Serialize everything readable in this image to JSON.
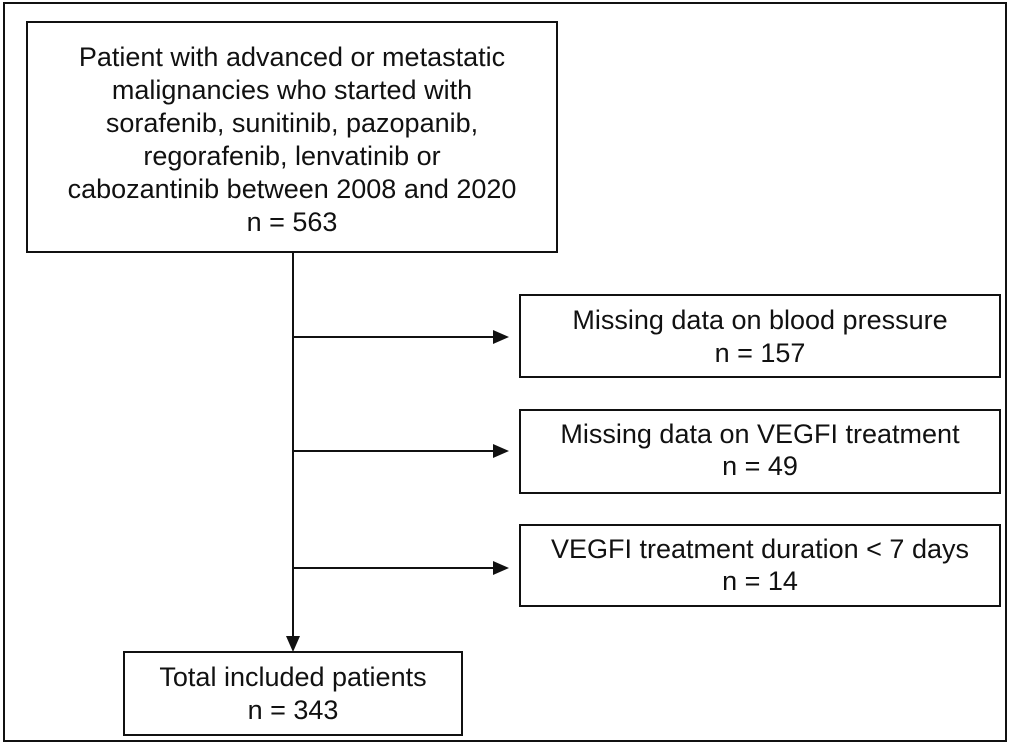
{
  "nodes": [
    {
      "lines": [
        "Patient with advanced or metastatic",
        "malignancies who started with",
        "sorafenib, sunitinib, pazopanib,",
        "regorafenib, lenvatinib or",
        "cabozantinib between 2008 and 2020",
        "n = 563"
      ]
    },
    {
      "lines": [
        "Missing data on blood pressure",
        "n = 157"
      ]
    },
    {
      "lines": [
        "Missing data on VEGFI treatment",
        "n = 49"
      ]
    },
    {
      "lines": [
        "VEGFI treatment duration  < 7 days",
        "n = 14"
      ]
    },
    {
      "lines": [
        "Total included patients",
        "n = 343"
      ]
    }
  ]
}
